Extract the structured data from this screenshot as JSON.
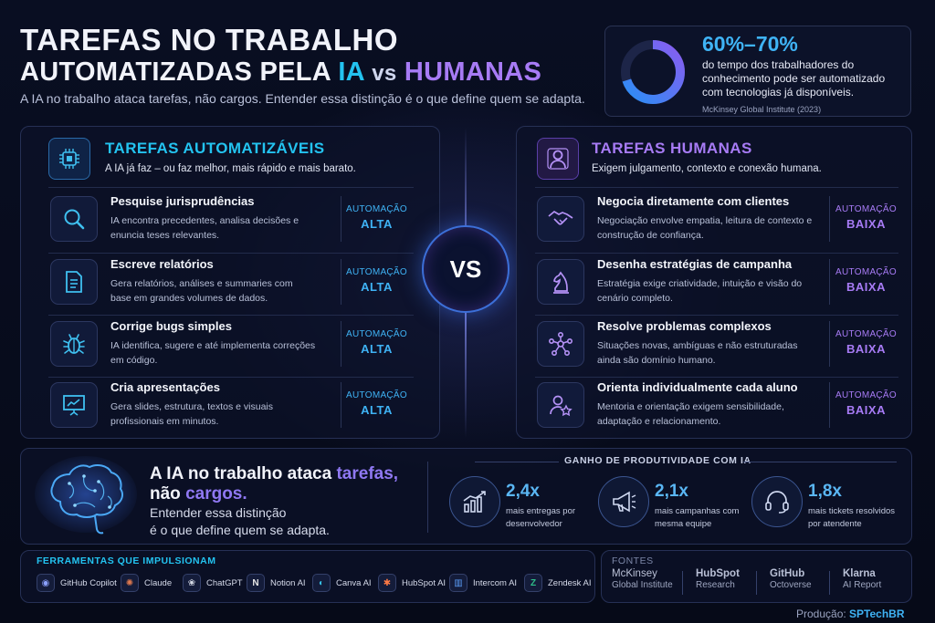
{
  "header": {
    "title_line1": "TAREFAS NO TRABALHO",
    "title_line2_prefix": "AUTOMATIZADAS PELA ",
    "title_line2_ia": "IA",
    "title_line2_vs": "vs",
    "title_line2_humanas": "HUMANAS",
    "subtitle": "A IA no trabalho ataca tarefas, não cargos. Entender essa distinção é o que define quem se adapta."
  },
  "stat": {
    "value": "60%–70%",
    "text": "do tempo dos trabalhadores do conhecimento pode ser automatizado com tecnologias já disponíveis.",
    "source": "McKinsey Global Institute (2023)",
    "ring_fraction": 0.7
  },
  "left_panel": {
    "title": "TAREFAS AUTOMATIZÁVEIS",
    "desc": "A IA já faz – ou faz melhor, mais rápido e mais barato.",
    "items": [
      {
        "title": "Pesquise jurisprudências",
        "desc": "IA encontra precedentes, analisa decisões e enuncia teses relevantes.",
        "level_label": "AUTOMAÇÃO",
        "level": "ALTA",
        "icon": "magnifier-icon"
      },
      {
        "title": "Escreve relatórios",
        "desc": "Gera relatórios, análises e summaries com base em grandes volumes de dados.",
        "level_label": "AUTOMAÇÃO",
        "level": "ALTA",
        "icon": "document-icon"
      },
      {
        "title": "Corrige bugs simples",
        "desc": "IA identifica, sugere e até implementa correções em código.",
        "level_label": "AUTOMAÇÃO",
        "level": "ALTA",
        "icon": "bug-icon"
      },
      {
        "title": "Cria apresentações",
        "desc": "Gera slides, estrutura, textos e visuais profissionais em minutos.",
        "level_label": "AUTOMAÇÃO",
        "level": "ALTA",
        "icon": "presentation-icon"
      }
    ]
  },
  "right_panel": {
    "title": "TAREFAS HUMANAS",
    "desc": "Exigem julgamento, contexto e conexão humana.",
    "items": [
      {
        "title": "Negocia diretamente com clientes",
        "desc": "Negociação envolve empatia, leitura de contexto e construção de confiança.",
        "level_label": "AUTOMAÇÃO",
        "level": "BAIXA",
        "icon": "handshake-icon"
      },
      {
        "title": "Desenha estratégias de campanha",
        "desc": "Estratégia exige criatividade, intuição e visão do cenário completo.",
        "level_label": "AUTOMAÇÃO",
        "level": "BAIXA",
        "icon": "chess-knight-icon"
      },
      {
        "title": "Resolve problemas complexos",
        "desc": "Situações novas, ambíguas e não estruturadas ainda são domínio humano.",
        "level_label": "AUTOMAÇÃO",
        "level": "BAIXA",
        "icon": "network-icon"
      },
      {
        "title": "Orienta individualmente cada aluno",
        "desc": "Mentoria e orientação exigem sensibilidade, adaptação e relacionamento.",
        "level_label": "AUTOMAÇÃO",
        "level": "BAIXA",
        "icon": "mentor-icon"
      }
    ]
  },
  "vs": "VS",
  "middle": {
    "line1_prefix": "A IA no trabalho ataca ",
    "line1_accent": "tarefas,",
    "line2_prefix": "não ",
    "line2_accent": "cargos.",
    "line3": "Entender essa distinção",
    "line4": "é o que define quem se adapta.",
    "gain_title": "GANHO DE PRODUTIVIDADE COM IA",
    "gains": [
      {
        "value": "2,4x",
        "label": "mais entregas por desenvolvedor",
        "icon": "bar-chart-icon"
      },
      {
        "value": "2,1x",
        "label": "mais campanhas com mesma equipe",
        "icon": "megaphone-icon"
      },
      {
        "value": "1,8x",
        "label": "mais tickets resolvidos por atendente",
        "icon": "headset-icon"
      }
    ]
  },
  "tools": {
    "title": "FERRAMENTAS QUE IMPULSIONAM",
    "items": [
      {
        "name": "GitHub Copilot",
        "glyph": "◉",
        "color": "#8aa0ff"
      },
      {
        "name": "Claude",
        "glyph": "✺",
        "color": "#e07a4f"
      },
      {
        "name": "ChatGPT",
        "glyph": "❀",
        "color": "#d8dde8"
      },
      {
        "name": "Notion AI",
        "glyph": "N",
        "color": "#e6e6e6"
      },
      {
        "name": "Canva AI",
        "glyph": "◐",
        "color": "#36c3e8"
      },
      {
        "name": "HubSpot AI",
        "glyph": "✱",
        "color": "#ff7a45"
      },
      {
        "name": "Intercom AI",
        "glyph": "▥",
        "color": "#5a9cf5"
      },
      {
        "name": "Zendesk AI",
        "glyph": "Z",
        "color": "#2fbf8a"
      }
    ]
  },
  "sources": {
    "title": "FONTES",
    "items": [
      {
        "line1": "McKinsey",
        "line2": "Global Institute"
      },
      {
        "line1": "HubSpot",
        "line2": "Research"
      },
      {
        "line1": "GitHub",
        "line2": "Octoverse"
      },
      {
        "line1": "Klarna",
        "line2": "AI Report"
      }
    ]
  },
  "credit": {
    "label": "Produção:",
    "name": "SPTechBR"
  },
  "colors": {
    "cyan": "#23c3f0",
    "purple": "#a77bf5",
    "high": "#3fb3f5",
    "low": "#8f78f2"
  }
}
